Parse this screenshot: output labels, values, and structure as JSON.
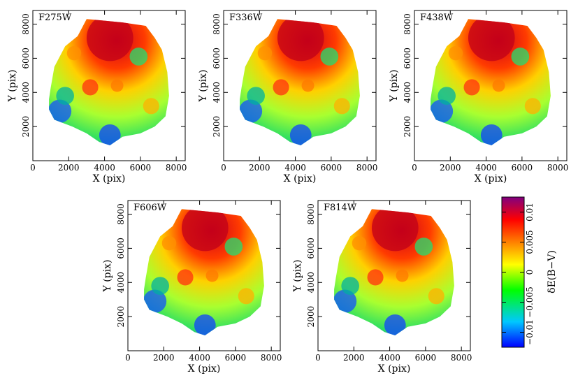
{
  "chart_data": {
    "type": "heatmap",
    "description_free": true,
    "panels": [
      {
        "title": "F275W"
      },
      {
        "title": "F336W"
      },
      {
        "title": "F438W"
      },
      {
        "title": "F606W"
      },
      {
        "title": "F814W"
      }
    ],
    "xlabel": "X (pix)",
    "ylabel": "Y (pix)",
    "xlim": [
      0,
      8500
    ],
    "ylim": [
      0,
      8800
    ],
    "xticks": [
      0,
      2000,
      4000,
      6000,
      8000
    ],
    "yticks": [
      2000,
      4000,
      6000,
      8000
    ],
    "colorbar": {
      "label": "δE(B−V)",
      "range": [
        -0.0125,
        0.0125
      ],
      "ticks": [
        -0.01,
        -0.005,
        0,
        0.005,
        0.01
      ],
      "tick_labels": [
        "−0.01",
        "−0.005",
        "0",
        "0.005",
        "0.01"
      ],
      "colors": [
        "#0000ff",
        "#00c8ff",
        "#00ff00",
        "#ffff00",
        "#ff8000",
        "#ff0000",
        "#800080"
      ]
    }
  }
}
